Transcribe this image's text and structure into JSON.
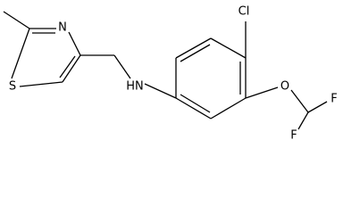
{
  "atoms": {
    "s": "S",
    "n": "N",
    "nh": "HN",
    "cl": "Cl",
    "o": "O",
    "f1": "F",
    "f2": "F"
  }
}
